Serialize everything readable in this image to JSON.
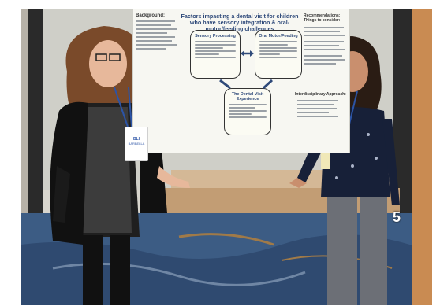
{
  "poster": {
    "title": "Factors impacting a dental visit for children who have sensory integration & oral-motor/feeding challenges",
    "background_heading": "Background:",
    "recommendations_heading": "Recommendations: Things to consider:",
    "interdisciplinary_heading": "Interdisciplinary Approach:",
    "sensory_box": "Sensory Processing",
    "oral_box": "Oral Motor/Feeding",
    "dental_box": "The Dental Visit Experience"
  },
  "badge_left": {
    "line1": "BLI",
    "line2": "BARBELLA"
  },
  "caption_number": "5",
  "colors": {
    "carpet": "#3c5c84",
    "poster_bg": "#f7f7f2",
    "title_blue": "#2f4a7a",
    "wall": "#d9d6cf"
  }
}
